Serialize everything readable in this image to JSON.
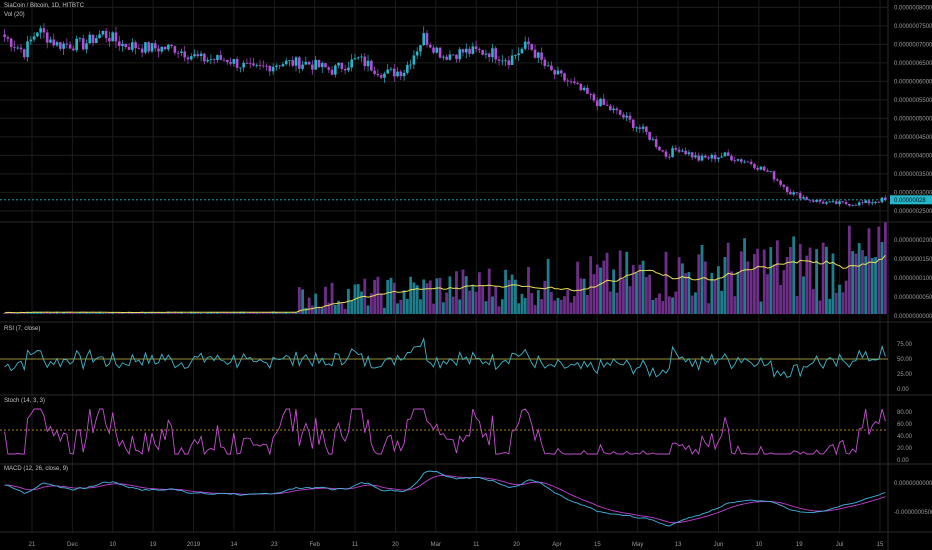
{
  "legends": {
    "main": "SiaCoin / Bitcoin, 1D, HITBTC",
    "volume": "Vol (20)",
    "rsi": "RSI (7, close)",
    "stoch": "Stoch (14, 3, 3)",
    "macd": "MACD (12, 26, close, 9)"
  },
  "colors": {
    "background": "#000000",
    "up": "#26b6c9",
    "down": "#b050d6",
    "volume_ma": "#e8e05a",
    "rsi_line": "#3fb6c8",
    "rsi_level": "#c9c24a",
    "stoch_k": "#c44fcf",
    "stoch_level": "#e0b02a",
    "macd_line": "#3fb6e0",
    "signal_line": "#c040d0",
    "grid": "#1c1c1c",
    "price_line": "#26b6c9"
  },
  "price_tag": "0.00000028",
  "chart_data": [
    {
      "type": "candlestick",
      "title": "SiaCoin / Bitcoin, 1D, HITBTC",
      "y_ticks": [
        "0.00000080000",
        "0.00000075000",
        "0.00000070000",
        "0.00000065000",
        "0.00000060000",
        "0.00000055000",
        "0.00000050000",
        "0.00000045000",
        "0.00000040000",
        "0.00000035000",
        "0.00000030000",
        "0.00000025000"
      ],
      "x_labels": [
        "21",
        "Dec",
        "10",
        "19",
        "2019",
        "14",
        "23",
        "Feb",
        "11",
        "20",
        "Mar",
        "11",
        "20",
        "Apr",
        "15",
        "May",
        "13",
        "Jun",
        "10",
        "19",
        "Jul",
        "15"
      ],
      "last_price": 2.8e-07,
      "close_anchors": [
        [
          0,
          7.2e-07
        ],
        [
          6,
          6.8e-07
        ],
        [
          10,
          7.4e-07
        ],
        [
          16,
          7e-07
        ],
        [
          24,
          7e-07
        ],
        [
          30,
          7.3e-07
        ],
        [
          36,
          7e-07
        ],
        [
          44,
          6.9e-07
        ],
        [
          52,
          6.9e-07
        ],
        [
          60,
          6.6e-07
        ],
        [
          68,
          6.6e-07
        ],
        [
          76,
          6.3e-07
        ],
        [
          84,
          6.5e-07
        ],
        [
          92,
          6.5e-07
        ],
        [
          100,
          6.3e-07
        ],
        [
          108,
          6.6e-07
        ],
        [
          116,
          6.2e-07
        ],
        [
          122,
          6.3e-07
        ],
        [
          128,
          7.2e-07
        ],
        [
          134,
          6.7e-07
        ],
        [
          140,
          6.8e-07
        ],
        [
          148,
          6.8e-07
        ],
        [
          154,
          6.6e-07
        ],
        [
          160,
          7e-07
        ],
        [
          166,
          6.3e-07
        ],
        [
          172,
          6e-07
        ],
        [
          180,
          5.5e-07
        ],
        [
          188,
          5.1e-07
        ],
        [
          196,
          4.6e-07
        ],
        [
          202,
          4e-07
        ],
        [
          206,
          4.2e-07
        ],
        [
          212,
          3.9e-07
        ],
        [
          220,
          4e-07
        ],
        [
          228,
          3.8e-07
        ],
        [
          234,
          3.5e-07
        ],
        [
          240,
          3e-07
        ],
        [
          246,
          2.8e-07
        ],
        [
          252,
          2.7e-07
        ],
        [
          262,
          2.7e-07
        ],
        [
          268,
          2.8e-07
        ]
      ]
    },
    {
      "type": "bar",
      "title": "Vol (20)",
      "y_ticks": [
        "0.0000000200",
        "0.0000000150",
        "0.0000000100",
        "0.0000000050",
        "0.00000000000"
      ],
      "ma_period": 20
    },
    {
      "type": "line",
      "title": "RSI (7, close)",
      "y_ticks": [
        "75.00",
        "50.00",
        "25.00",
        "0.00"
      ],
      "ylim": [
        0,
        100
      ],
      "level": 50
    },
    {
      "type": "line",
      "title": "Stoch (14, 3, 3)",
      "y_ticks": [
        "80.00",
        "60.00",
        "40.00",
        "20.00",
        "0.00"
      ],
      "ylim": [
        0,
        100
      ],
      "level": 50
    },
    {
      "type": "line",
      "title": "MACD (12, 26, close, 9)",
      "y_ticks": [
        "0.0000000000",
        "-0.0000000500"
      ]
    }
  ]
}
